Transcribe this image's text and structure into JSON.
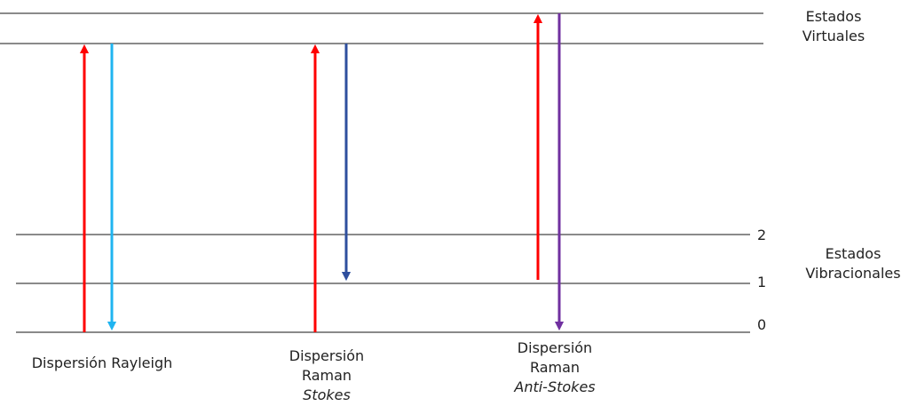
{
  "diagram": {
    "group_labels": {
      "virtual_line1": "Estados",
      "virtual_line2": "Virtuales",
      "vibrational_line1": "Estados",
      "vibrational_line2": "Vibracionales"
    },
    "level_numbers": {
      "level_2": "2",
      "level_1": "1",
      "level_0": "0"
    },
    "captions": {
      "rayleigh": "Dispersión Rayleigh",
      "stokes_line1": "Dispersión",
      "stokes_line2": "Raman",
      "stokes_line3": "Stokes",
      "antistokes_line1": "Dispersión",
      "antistokes_line2": "Raman",
      "antistokes_line3": "Anti-Stokes"
    },
    "colors": {
      "excitation": "#ff0000",
      "rayleigh_emission": "#1fb4f0",
      "stokes_emission": "#2e4f9e",
      "antistokes_emission": "#7030a0",
      "level_line": "#444444"
    }
  }
}
